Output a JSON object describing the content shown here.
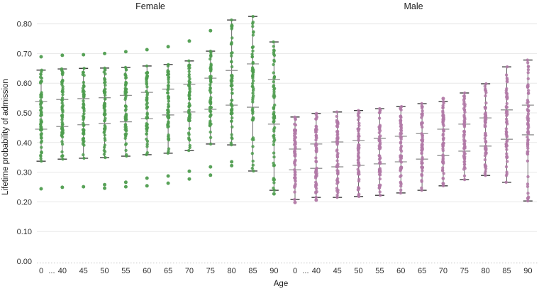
{
  "chart_data": {
    "type": "scatter",
    "variant": "faceted strip plot with whisker caps and quantile interval lines (simulation draws per age)",
    "title": "",
    "xlabel": "Age",
    "ylabel": "Lifetime probability of admission",
    "ylim": [
      0.0,
      0.84
    ],
    "yticks": [
      0.0,
      0.1,
      0.2,
      0.3,
      0.4,
      0.5,
      0.6,
      0.7,
      0.8
    ],
    "grid": "horizontal light gray lines; dotted baseline at 0.00",
    "axis_break": "...",
    "categories": [
      "0",
      "40",
      "45",
      "50",
      "55",
      "60",
      "65",
      "70",
      "75",
      "80",
      "85",
      "90"
    ],
    "style": {
      "grid_color": "#e8e8e8",
      "axis_dotted_color": "#bdbdbd",
      "whisker_color": "#666666",
      "cap_color": "#3d3d3d",
      "midline_color": "#8f8f8f",
      "text_color": "#2e2e2e"
    },
    "facets": [
      {
        "name": "Female",
        "color": "#4f9d4f",
        "n_points": 57,
        "columns": [
          {
            "age": "0",
            "high": 0.644,
            "upper": 0.538,
            "lower": 0.445,
            "low": 0.337,
            "out_above": [
              0.689
            ],
            "out_below": [
              0.244
            ]
          },
          {
            "age": "40",
            "high": 0.648,
            "upper": 0.545,
            "lower": 0.454,
            "low": 0.344,
            "out_above": [
              0.694
            ],
            "out_below": [
              0.249
            ]
          },
          {
            "age": "45",
            "high": 0.65,
            "upper": 0.548,
            "lower": 0.46,
            "low": 0.347,
            "out_above": [
              0.696
            ],
            "out_below": [
              0.251
            ]
          },
          {
            "age": "50",
            "high": 0.651,
            "upper": 0.551,
            "lower": 0.464,
            "low": 0.349,
            "out_above": [
              0.7
            ],
            "out_below": [
              0.258,
              0.246
            ]
          },
          {
            "age": "55",
            "high": 0.653,
            "upper": 0.559,
            "lower": 0.47,
            "low": 0.354,
            "out_above": [
              0.706
            ],
            "out_below": [
              0.266,
              0.251
            ]
          },
          {
            "age": "60",
            "high": 0.658,
            "upper": 0.569,
            "lower": 0.48,
            "low": 0.359,
            "out_above": [
              0.713
            ],
            "out_below": [
              0.28,
              0.254
            ]
          },
          {
            "age": "65",
            "high": 0.663,
            "upper": 0.58,
            "lower": 0.493,
            "low": 0.364,
            "out_above": [
              0.723
            ],
            "out_below": [
              0.287,
              0.263
            ]
          },
          {
            "age": "70",
            "high": 0.675,
            "upper": 0.596,
            "lower": 0.503,
            "low": 0.373,
            "out_above": [
              0.742
            ],
            "out_below": [
              0.303,
              0.277
            ]
          },
          {
            "age": "75",
            "high": 0.708,
            "upper": 0.617,
            "lower": 0.512,
            "low": 0.395,
            "out_above": [
              0.777
            ],
            "out_below": [
              0.318,
              0.29
            ]
          },
          {
            "age": "80",
            "high": 0.813,
            "upper": 0.643,
            "lower": 0.526,
            "low": 0.392,
            "out_above": [],
            "out_below": [
              0.335,
              0.322
            ]
          },
          {
            "age": "85",
            "high": 0.825,
            "upper": 0.665,
            "lower": 0.519,
            "low": 0.304,
            "out_above": [],
            "out_below": []
          },
          {
            "age": "90",
            "high": 0.739,
            "upper": 0.612,
            "lower": 0.462,
            "low": 0.239,
            "out_above": [],
            "out_below": [
              0.227
            ]
          }
        ]
      },
      {
        "name": "Male",
        "color": "#b279a7",
        "n_points": 57,
        "columns": [
          {
            "age": "0",
            "high": 0.486,
            "upper": 0.378,
            "lower": 0.308,
            "low": 0.208,
            "out_above": [],
            "out_below": [
              0.198
            ]
          },
          {
            "age": "40",
            "high": 0.498,
            "upper": 0.395,
            "lower": 0.313,
            "low": 0.215,
            "out_above": [],
            "out_below": [
              0.206
            ]
          },
          {
            "age": "45",
            "high": 0.503,
            "upper": 0.402,
            "lower": 0.318,
            "low": 0.215,
            "out_above": [],
            "out_below": []
          },
          {
            "age": "50",
            "high": 0.508,
            "upper": 0.407,
            "lower": 0.323,
            "low": 0.218,
            "out_above": [],
            "out_below": []
          },
          {
            "age": "55",
            "high": 0.514,
            "upper": 0.414,
            "lower": 0.328,
            "low": 0.222,
            "out_above": [],
            "out_below": []
          },
          {
            "age": "60",
            "high": 0.521,
            "upper": 0.421,
            "lower": 0.335,
            "low": 0.23,
            "out_above": [],
            "out_below": []
          },
          {
            "age": "65",
            "high": 0.531,
            "upper": 0.43,
            "lower": 0.344,
            "low": 0.239,
            "out_above": [],
            "out_below": []
          },
          {
            "age": "70",
            "high": 0.538,
            "upper": 0.445,
            "lower": 0.356,
            "low": 0.254,
            "out_above": [
              0.548
            ],
            "out_below": []
          },
          {
            "age": "75",
            "high": 0.567,
            "upper": 0.462,
            "lower": 0.371,
            "low": 0.275,
            "out_above": [],
            "out_below": []
          },
          {
            "age": "80",
            "high": 0.598,
            "upper": 0.483,
            "lower": 0.388,
            "low": 0.289,
            "out_above": [],
            "out_below": []
          },
          {
            "age": "85",
            "high": 0.655,
            "upper": 0.51,
            "lower": 0.411,
            "low": 0.266,
            "out_above": [],
            "out_below": []
          },
          {
            "age": "90",
            "high": 0.678,
            "upper": 0.526,
            "lower": 0.426,
            "low": 0.203,
            "out_above": [],
            "out_below": [
              0.212
            ]
          }
        ]
      }
    ]
  }
}
